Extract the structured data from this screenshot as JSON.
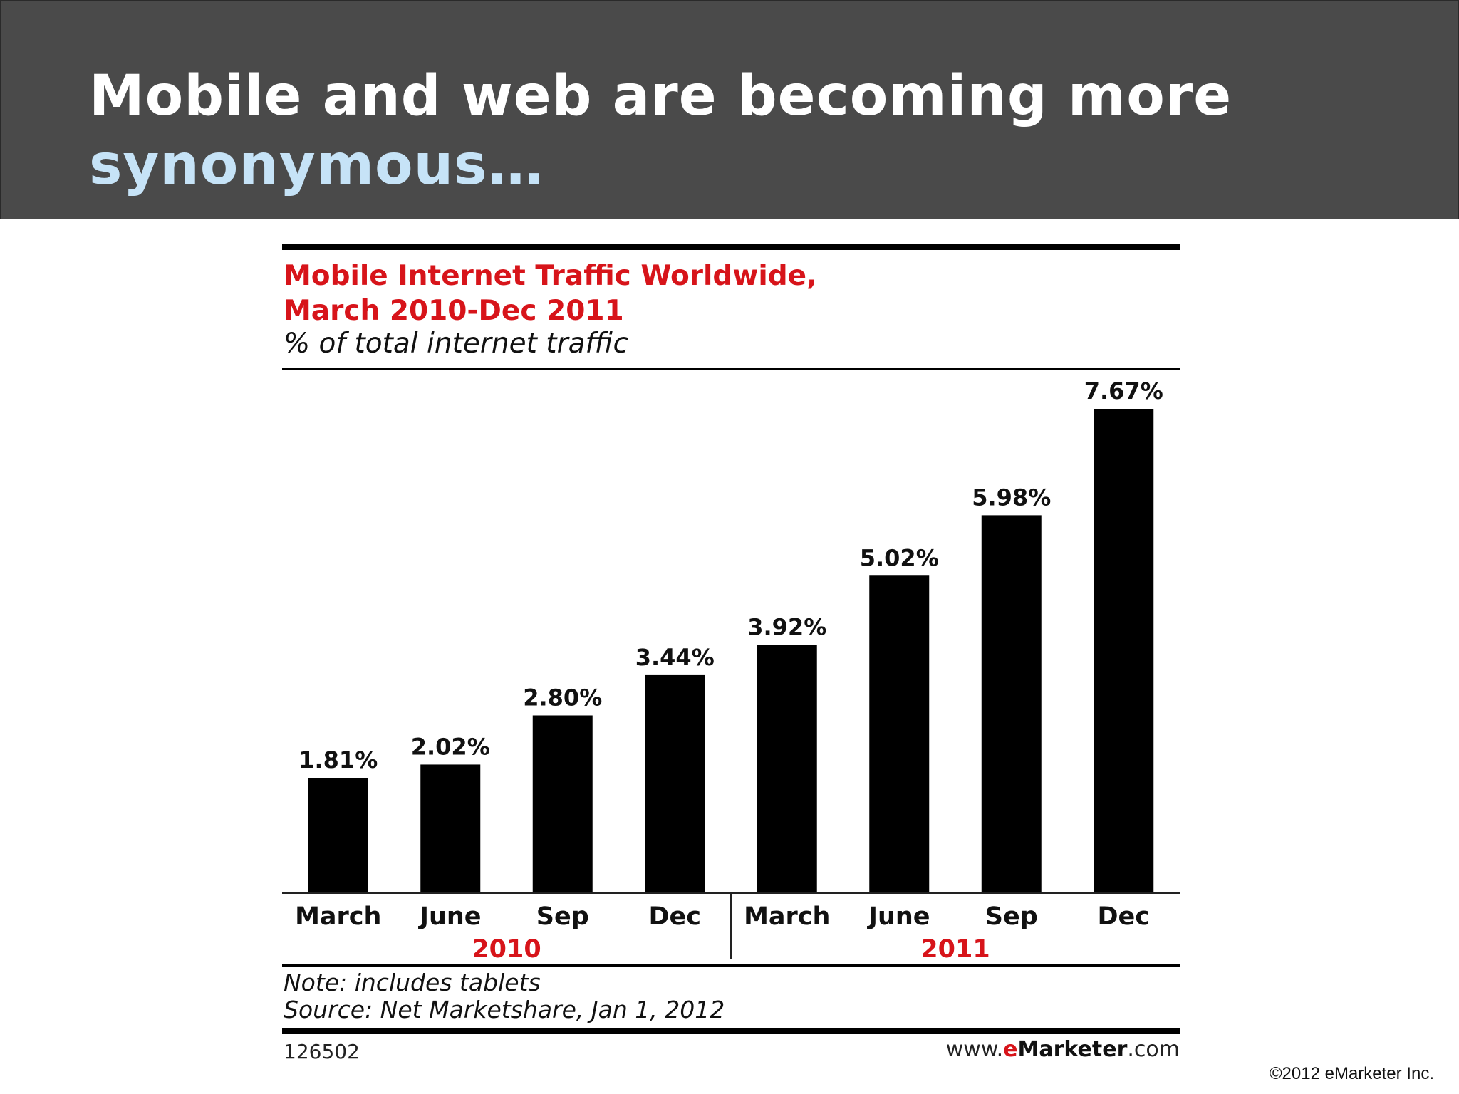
{
  "slide": {
    "title_line1": "Mobile and web are becoming more",
    "title_line2": "synonymous…",
    "header_bg": "#4a4a4a",
    "accent_color": "#c6e3f7",
    "copyright": "©2012 eMarketer Inc."
  },
  "chart_data": {
    "type": "bar",
    "title_line1": "Mobile Internet Traffic Worldwide,",
    "title_line2": "March 2010-Dec 2011",
    "subtitle": "% of total internet traffic",
    "categories": [
      "March",
      "June",
      "Sep",
      "Dec",
      "March",
      "June",
      "Sep",
      "Dec"
    ],
    "groups": [
      {
        "label": "2010",
        "count": 4
      },
      {
        "label": "2011",
        "count": 4
      }
    ],
    "values": [
      1.81,
      2.02,
      2.8,
      3.44,
      3.92,
      5.02,
      5.98,
      7.67
    ],
    "data_labels": [
      "1.81%",
      "2.02%",
      "2.80%",
      "3.44%",
      "3.92%",
      "5.02%",
      "5.98%",
      "7.67%"
    ],
    "ylim": [
      0,
      7.67
    ],
    "grid": false,
    "bar_color": "#000000",
    "title_color": "#d7141a",
    "group_label_color": "#d7141a",
    "note": "Note: includes tablets",
    "source": "Source: Net Marketshare, Jan 1, 2012",
    "chart_id": "126502",
    "brand": {
      "prefix": "www.",
      "e": "e",
      "name": "Marketer",
      "suffix": ".com"
    }
  }
}
